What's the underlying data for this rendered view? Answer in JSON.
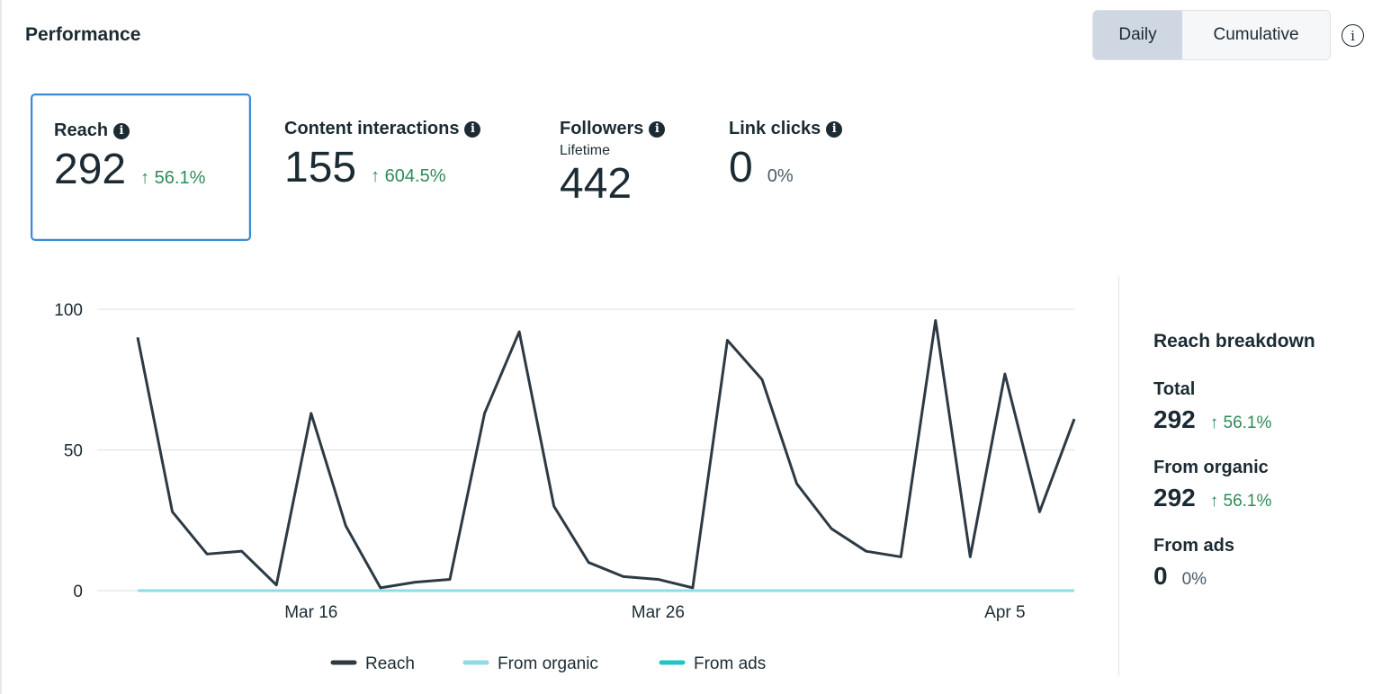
{
  "header": {
    "title": "Performance",
    "toggle": {
      "options": [
        "Daily",
        "Cumulative"
      ],
      "selected": "Daily"
    },
    "info_icon": "info-outline-icon"
  },
  "metrics": [
    {
      "label": "Reach",
      "value": "292",
      "delta": "↑ 56.1%",
      "selected": true
    },
    {
      "label": "Content interactions",
      "value": "155",
      "delta": "↑ 604.5%"
    },
    {
      "label": "Followers",
      "sub": "Lifetime",
      "value": "442"
    },
    {
      "label": "Link clicks",
      "value": "0",
      "delta": "0%"
    }
  ],
  "breakdown": {
    "title": "Reach breakdown",
    "items": [
      {
        "label": "Total",
        "value": "292",
        "delta": "↑ 56.1%"
      },
      {
        "label": "From organic",
        "value": "292",
        "delta": "↑ 56.1%"
      },
      {
        "label": "From ads",
        "value": "0",
        "delta": "0%"
      }
    ]
  },
  "colors": {
    "positive": "#2e8b57",
    "reach": "#2d3a44",
    "organic": "#8fdbe6",
    "ads": "#1fc4c9",
    "selected_border": "#3b8ad9"
  },
  "chart_data": {
    "type": "line",
    "x": [
      "Mar 11",
      "Mar 12",
      "Mar 13",
      "Mar 14",
      "Mar 15",
      "Mar 16",
      "Mar 17",
      "Mar 18",
      "Mar 19",
      "Mar 20",
      "Mar 21",
      "Mar 22",
      "Mar 23",
      "Mar 24",
      "Mar 25",
      "Mar 26",
      "Mar 27",
      "Mar 28",
      "Mar 29",
      "Mar 30",
      "Mar 31",
      "Apr 1",
      "Apr 2",
      "Apr 3",
      "Apr 4",
      "Apr 5",
      "Apr 6",
      "Apr 7"
    ],
    "x_ticks": [
      "Mar 16",
      "Mar 26",
      "Apr 5"
    ],
    "y_ticks": [
      0,
      50,
      100
    ],
    "ylim": [
      0,
      100
    ],
    "grid": true,
    "legend": "bottom",
    "series": [
      {
        "name": "Reach",
        "color": "#2d3a44",
        "values": [
          90,
          28,
          13,
          14,
          2,
          63,
          23,
          1,
          3,
          4,
          63,
          92,
          30,
          10,
          5,
          4,
          1,
          89,
          75,
          38,
          22,
          14,
          12,
          96,
          12,
          77,
          28,
          61
        ]
      },
      {
        "name": "From organic",
        "color": "#8fdbe6",
        "values": [
          0,
          0,
          0,
          0,
          0,
          0,
          0,
          0,
          0,
          0,
          0,
          0,
          0,
          0,
          0,
          0,
          0,
          0,
          0,
          0,
          0,
          0,
          0,
          0,
          0,
          0,
          0,
          0
        ]
      },
      {
        "name": "From ads",
        "color": "#1fc4c9",
        "values": [
          0,
          0,
          0,
          0,
          0,
          0,
          0,
          0,
          0,
          0,
          0,
          0,
          0,
          0,
          0,
          0,
          0,
          0,
          0,
          0,
          0,
          0,
          0,
          0,
          0,
          0,
          0,
          0
        ]
      }
    ]
  }
}
